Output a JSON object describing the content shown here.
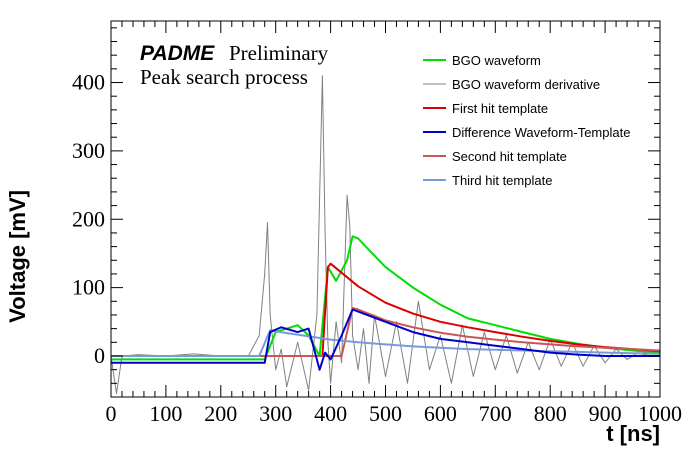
{
  "chart_data": {
    "type": "line",
    "title": "",
    "xlabel": "t [ns]",
    "ylabel": "Voltage [mV]",
    "xlim": [
      0,
      1000
    ],
    "ylim": [
      -60,
      490
    ],
    "x_ticks": [
      0,
      100,
      200,
      300,
      400,
      500,
      600,
      700,
      800,
      900,
      1000
    ],
    "y_ticks": [
      0,
      100,
      200,
      300,
      400
    ],
    "grid": false,
    "legend_position": "top-right",
    "annotations": {
      "brand": "PADME",
      "status": "Preliminary",
      "subtitle": "Peak search process"
    },
    "series": [
      {
        "name": "BGO waveform",
        "color": "#00dd00",
        "x": [
          0,
          100,
          200,
          280,
          300,
          340,
          360,
          380,
          395,
          410,
          430,
          440,
          450,
          470,
          500,
          550,
          600,
          650,
          700,
          750,
          800,
          850,
          900,
          950,
          1000
        ],
        "y": [
          -5,
          -5,
          -5,
          -5,
          35,
          45,
          30,
          0,
          130,
          110,
          140,
          175,
          172,
          155,
          130,
          100,
          75,
          55,
          45,
          35,
          25,
          18,
          12,
          8,
          5
        ]
      },
      {
        "name": "BGO waveform derivative",
        "color": "#808080",
        "x": [
          0,
          10,
          20,
          50,
          100,
          150,
          200,
          250,
          270,
          280,
          285,
          290,
          300,
          310,
          320,
          340,
          360,
          375,
          385,
          390,
          395,
          400,
          410,
          420,
          430,
          435,
          440,
          450,
          460,
          470,
          480,
          500,
          520,
          540,
          560,
          580,
          600,
          620,
          640,
          660,
          680,
          700,
          720,
          740,
          760,
          780,
          800,
          820,
          840,
          860,
          880,
          900,
          920,
          940,
          960,
          980,
          1000
        ],
        "y": [
          0,
          -55,
          0,
          2,
          0,
          3,
          0,
          0,
          30,
          120,
          195,
          60,
          -20,
          10,
          -45,
          20,
          -50,
          60,
          410,
          180,
          20,
          -40,
          50,
          -10,
          235,
          190,
          30,
          -20,
          40,
          -40,
          60,
          -30,
          50,
          -40,
          80,
          -20,
          30,
          -40,
          45,
          -30,
          35,
          -20,
          30,
          -25,
          20,
          -20,
          25,
          -15,
          20,
          -15,
          15,
          -10,
          10,
          -5,
          5,
          0,
          0
        ]
      },
      {
        "name": "First hit template",
        "color": "#dd0000",
        "x": [
          0,
          385,
          395,
          400,
          450,
          500,
          550,
          600,
          650,
          700,
          750,
          800,
          850,
          900,
          950,
          1000
        ],
        "y": [
          0,
          0,
          130,
          135,
          102,
          78,
          62,
          50,
          42,
          35,
          28,
          22,
          17,
          13,
          10,
          7
        ]
      },
      {
        "name": "Difference Waveform-Template",
        "color": "#0000cc",
        "x": [
          0,
          100,
          200,
          280,
          290,
          310,
          340,
          360,
          370,
          380,
          390,
          400,
          420,
          440,
          460,
          500,
          550,
          600,
          650,
          700,
          750,
          800,
          850,
          900,
          950,
          1000
        ],
        "y": [
          -10,
          -10,
          -10,
          -10,
          35,
          42,
          35,
          40,
          10,
          -20,
          5,
          -5,
          30,
          68,
          62,
          50,
          35,
          25,
          20,
          15,
          10,
          5,
          2,
          0,
          0,
          0
        ]
      },
      {
        "name": "Second hit template",
        "color": "#cc5555",
        "x": [
          0,
          420,
          440,
          450,
          500,
          550,
          600,
          650,
          700,
          750,
          800,
          850,
          900,
          950,
          1000
        ],
        "y": [
          0,
          0,
          70,
          68,
          52,
          42,
          34,
          28,
          24,
          20,
          17,
          14,
          12,
          10,
          8
        ]
      },
      {
        "name": "Third hit template",
        "color": "#7799dd",
        "x": [
          0,
          270,
          290,
          300,
          350,
          400,
          450,
          500,
          550,
          600,
          650,
          700,
          750,
          800,
          850,
          900,
          950,
          1000
        ],
        "y": [
          0,
          0,
          38,
          36,
          30,
          24,
          20,
          17,
          14,
          12,
          10,
          9,
          8,
          7,
          6,
          5,
          4,
          3
        ]
      }
    ]
  }
}
